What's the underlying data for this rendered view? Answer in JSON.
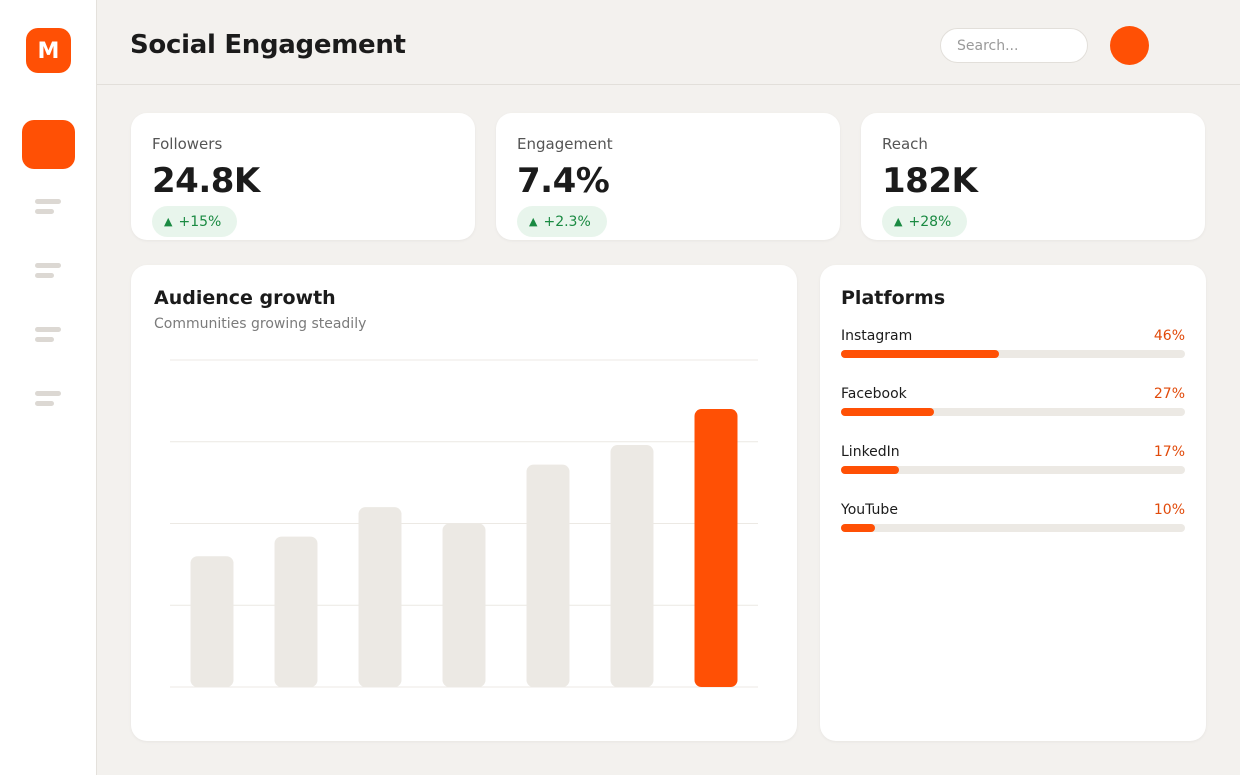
{
  "brand": {
    "logo_letter": "M",
    "accent": "#ff5005"
  },
  "header": {
    "title": "Social Engagement",
    "search_placeholder": "Search..."
  },
  "sidebar": {
    "items": [
      "nav-item-1",
      "nav-item-2",
      "nav-item-3",
      "nav-item-4",
      "nav-item-5"
    ]
  },
  "stats": [
    {
      "label": "Followers",
      "value": "24.8K",
      "delta": "+15%"
    },
    {
      "label": "Engagement",
      "value": "7.4%",
      "delta": "+2.3%"
    },
    {
      "label": "Reach",
      "value": "182K",
      "delta": "+28%"
    }
  ],
  "audience": {
    "title": "Audience growth",
    "subtitle": "Communities growing steadily"
  },
  "chart_data": {
    "type": "bar",
    "title": "Audience growth",
    "subtitle": "Communities growing steadily",
    "categories": [
      "",
      "",
      "",
      "",
      "",
      "",
      ""
    ],
    "values": [
      40,
      46,
      55,
      50,
      68,
      74,
      85
    ],
    "ylim": [
      0,
      100
    ],
    "grid": true,
    "highlight_index": 6,
    "colors": {
      "bar": "#ece9e4",
      "highlight": "#ff5005",
      "grid": "#ece9e4"
    }
  },
  "platforms": {
    "title": "Platforms",
    "items": [
      {
        "name": "Instagram",
        "pct_label": "46%",
        "value": 46
      },
      {
        "name": "Facebook",
        "pct_label": "27%",
        "value": 27
      },
      {
        "name": "LinkedIn",
        "pct_label": "17%",
        "value": 17
      },
      {
        "name": "YouTube",
        "pct_label": "10%",
        "value": 10
      }
    ]
  }
}
